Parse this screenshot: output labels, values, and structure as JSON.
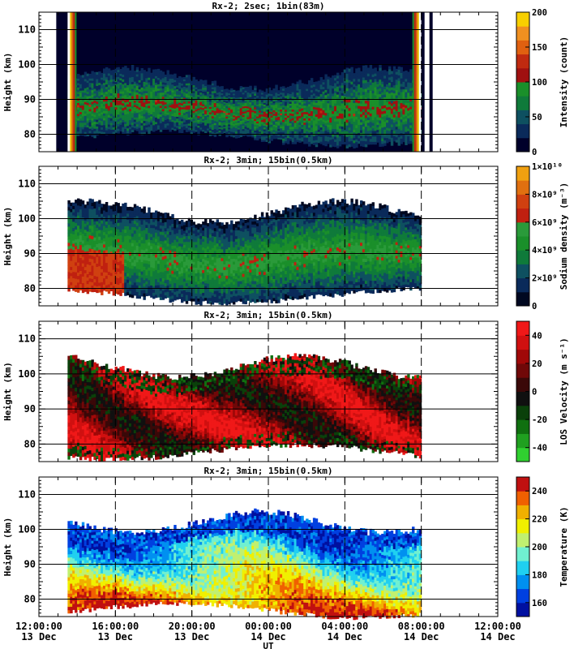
{
  "chart_data": [
    {
      "type": "heatmap",
      "title": "Rx-2;  2sec; 1bin(83m)",
      "ylabel": "Height (km)",
      "xlabel": "",
      "ylim": [
        75,
        115
      ],
      "yticks": [
        80,
        90,
        100,
        110
      ],
      "colorbar": {
        "label": "Intensity (count)",
        "min": 0,
        "max": 200,
        "ticks": [
          "0",
          "50",
          "100",
          "150",
          "200"
        ],
        "colors": [
          "#00002a",
          "#0a2a5a",
          "#0e5060",
          "#0f7a3a",
          "#1a8f2a",
          "#a01010",
          "#c02a10",
          "#e06010",
          "#f09020",
          "#f8d000"
        ]
      },
      "observation_window_ut": [
        "13:30",
        "08:00"
      ],
      "layer": {
        "bottom_km": 78,
        "top_km": 97,
        "peak_km": 90
      }
    },
    {
      "type": "heatmap",
      "title": "Rx-2; 3min; 15bin(0.5km)",
      "ylabel": "Height (km)",
      "xlabel": "",
      "ylim": [
        75,
        115
      ],
      "yticks": [
        80,
        90,
        100,
        110
      ],
      "colorbar": {
        "label": "Sodium density (m⁻³)",
        "min": 0,
        "max": 10000000000.0,
        "ticks": [
          "0",
          "2×10⁹",
          "4×10⁹",
          "6×10⁹",
          "8×10⁹",
          "1×10¹⁰"
        ],
        "colors": [
          "#000820",
          "#0a2a5a",
          "#0e5060",
          "#0f7a3a",
          "#1a8f2a",
          "#2a9a3a",
          "#c02010",
          "#d04010",
          "#e07010",
          "#f0a010"
        ]
      },
      "observation_window_ut": [
        "13:30",
        "08:00"
      ],
      "layer": {
        "bottom_km": 77,
        "top_km": 103,
        "peak_km": 90
      }
    },
    {
      "type": "heatmap",
      "title": "Rx-2; 3min; 15bin(0.5km)",
      "ylabel": "Height (km)",
      "xlabel": "",
      "ylim": [
        75,
        115
      ],
      "yticks": [
        80,
        90,
        100,
        110
      ],
      "colorbar": {
        "label": "LOS Velocity (m s⁻¹)",
        "min": -50,
        "max": 50,
        "ticks": [
          "-40",
          "-20",
          "0",
          "20",
          "40"
        ],
        "colors": [
          "#30d030",
          "#20a020",
          "#107010",
          "#0a400a",
          "#101010",
          "#3a0808",
          "#700808",
          "#a00808",
          "#d01010",
          "#f01818"
        ]
      },
      "observation_window_ut": [
        "13:30",
        "08:00"
      ],
      "layer": {
        "bottom_km": 77,
        "top_km": 103,
        "peak_km": 90
      }
    },
    {
      "type": "heatmap",
      "title": "Rx-2; 3min; 15bin(0.5km)",
      "ylabel": "Height (km)",
      "xlabel": "UT",
      "ylim": [
        75,
        115
      ],
      "yticks": [
        80,
        90,
        100,
        110
      ],
      "colorbar": {
        "label": "Temperature (K)",
        "min": 150,
        "max": 250,
        "ticks": [
          "160",
          "180",
          "200",
          "220",
          "240"
        ],
        "colors": [
          "#0010a0",
          "#0040e0",
          "#0090f0",
          "#20d0f0",
          "#70f0d0",
          "#c0f070",
          "#f0f000",
          "#f0b000",
          "#f06000",
          "#c01010"
        ]
      },
      "observation_window_ut": [
        "13:30",
        "08:00"
      ],
      "layer": {
        "bottom_km": 76,
        "top_km": 103,
        "peak_km": 90
      }
    }
  ],
  "x_axis": {
    "range_ut": [
      "12:00:00 13 Dec",
      "12:00:00 14 Dec"
    ],
    "ticks": [
      {
        "time": "12:00:00",
        "date": "13 Dec"
      },
      {
        "time": "16:00:00",
        "date": "13 Dec"
      },
      {
        "time": "20:00:00",
        "date": "13 Dec"
      },
      {
        "time": "00:00:00",
        "date": "14 Dec"
      },
      {
        "time": "04:00:00",
        "date": "14 Dec"
      },
      {
        "time": "08:00:00",
        "date": "14 Dec"
      },
      {
        "time": "12:00:00",
        "date": "14 Dec"
      }
    ],
    "dashed_lines_hours": [
      16,
      20,
      24,
      28,
      32
    ],
    "label": "UT"
  }
}
